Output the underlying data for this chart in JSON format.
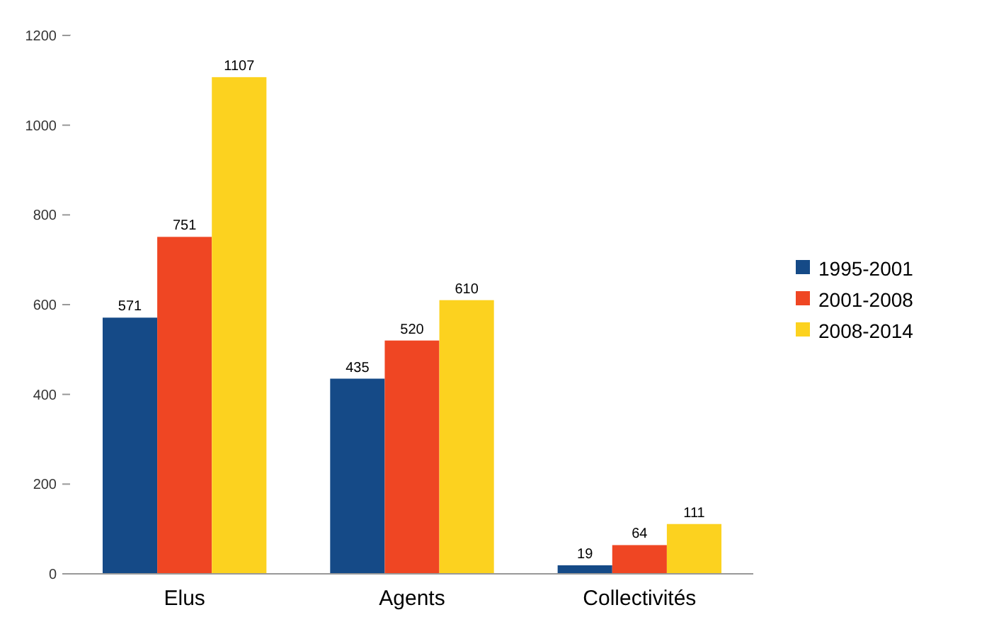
{
  "chart_data": {
    "type": "bar",
    "categories": [
      "Elus",
      "Agents",
      "Collectivités"
    ],
    "series": [
      {
        "name": "1995-2001",
        "color": "#154a87",
        "values": [
          571,
          435,
          19
        ]
      },
      {
        "name": "2001-2008",
        "color": "#ef4623",
        "values": [
          751,
          520,
          64
        ]
      },
      {
        "name": "2008-2014",
        "color": "#fcd21f",
        "values": [
          1107,
          610,
          111
        ]
      }
    ],
    "ylim": [
      0,
      1200
    ],
    "yticks": [
      0,
      200,
      400,
      600,
      800,
      1000,
      1200
    ],
    "data_labels": true,
    "grid": false,
    "legend": "right"
  }
}
